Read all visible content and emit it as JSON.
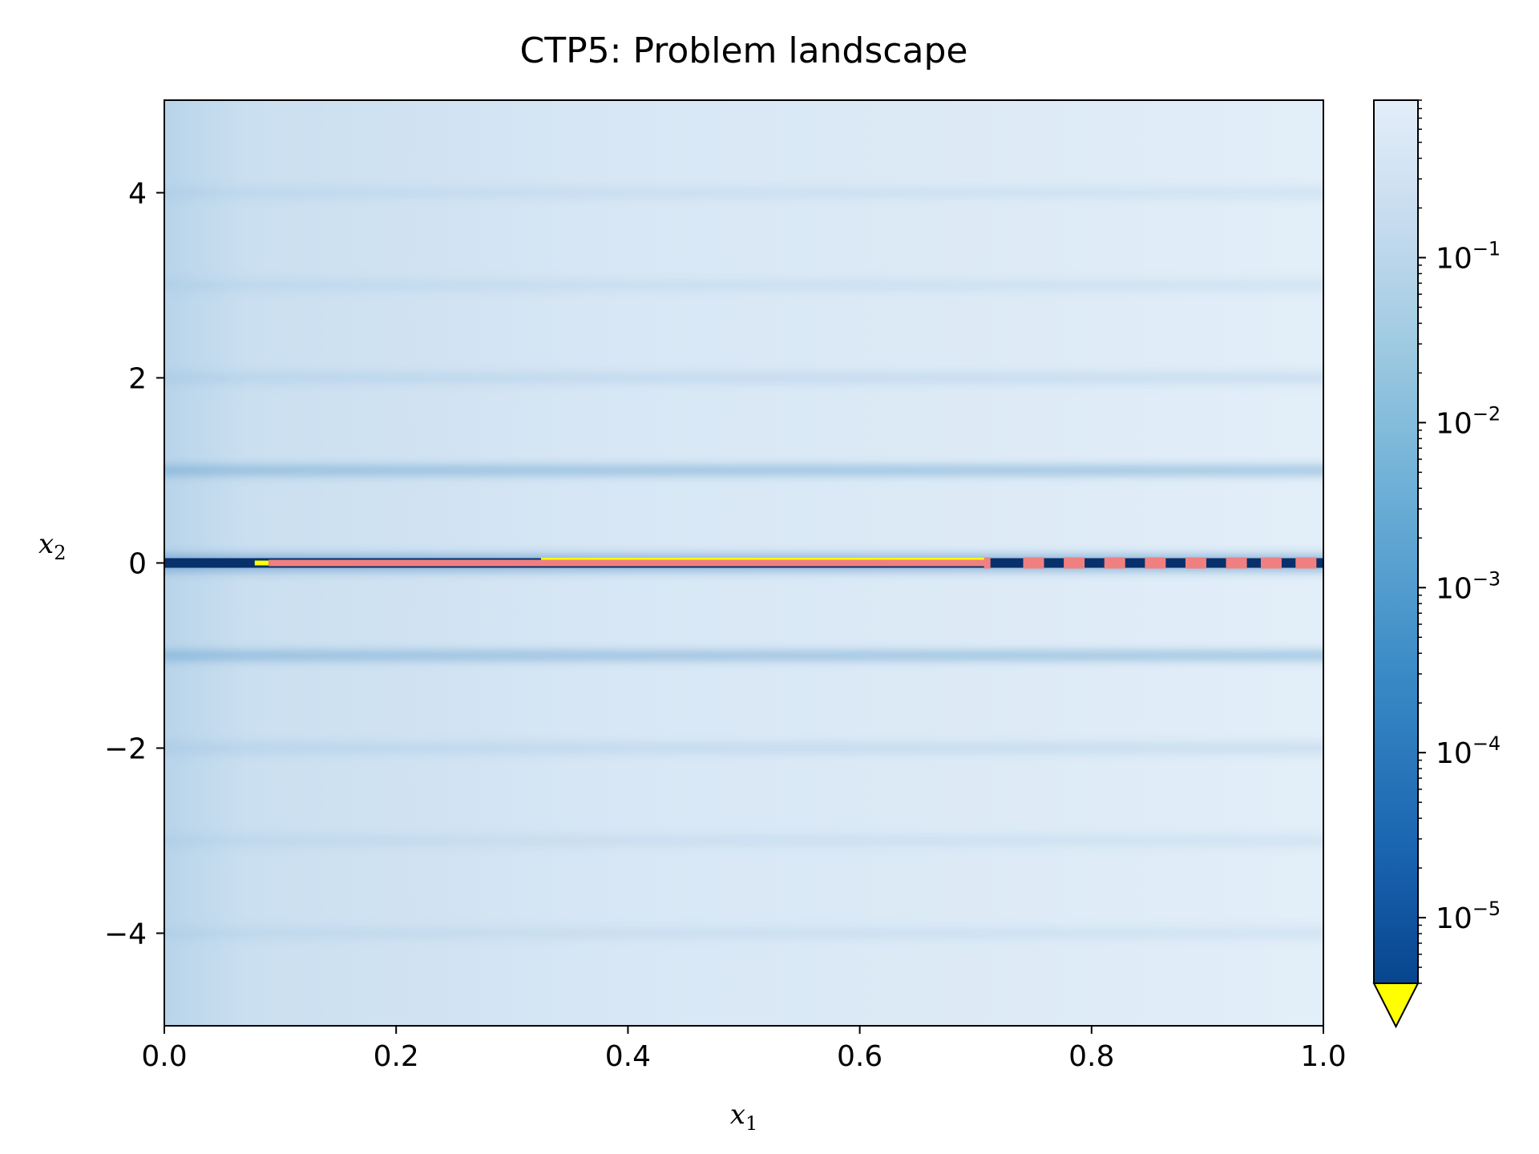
{
  "chart_data": {
    "type": "heatmap",
    "title": "CTP5: Problem landscape",
    "xlabel": {
      "base": "x",
      "sub": "1"
    },
    "ylabel": {
      "base": "x",
      "sub": "2"
    },
    "xlim": [
      0.0,
      1.0
    ],
    "ylim": [
      -5,
      5
    ],
    "x_ticks": [
      {
        "value": 0.0,
        "label": "0.0"
      },
      {
        "value": 0.2,
        "label": "0.2"
      },
      {
        "value": 0.4,
        "label": "0.4"
      },
      {
        "value": 0.6,
        "label": "0.6"
      },
      {
        "value": 0.8,
        "label": "0.8"
      },
      {
        "value": 1.0,
        "label": "1.0"
      }
    ],
    "y_ticks": [
      {
        "value": 4,
        "label": "4"
      },
      {
        "value": 2,
        "label": "2"
      },
      {
        "value": 0,
        "label": "0"
      },
      {
        "value": -2,
        "label": "−2"
      },
      {
        "value": -4,
        "label": "−4"
      }
    ],
    "colormap": "Blues_r",
    "color_scale": "log",
    "colorbar": {
      "range": [
        4e-06,
        0.9
      ],
      "extend": "min",
      "under_color": "#ffff00",
      "ticks": [
        {
          "value": 0.1,
          "base": "10",
          "exp": "−1"
        },
        {
          "value": 0.01,
          "base": "10",
          "exp": "−2"
        },
        {
          "value": 0.001,
          "base": "10",
          "exp": "−3"
        },
        {
          "value": 0.0001,
          "base": "10",
          "exp": "−4"
        },
        {
          "value": 1e-05,
          "base": "10",
          "exp": "−5"
        }
      ]
    },
    "low_value_bands_x2": [
      -4,
      -3,
      -2,
      -1,
      0,
      1,
      2,
      3,
      4
    ],
    "minimum_line": {
      "x2": 0,
      "x1_range": [
        0.0,
        1.0
      ],
      "color": "#08306b"
    },
    "feasible_min_overlay": {
      "x2": 0,
      "x1_range": [
        0.325,
        0.71
      ],
      "color": "#ffff00"
    },
    "pareto_front": {
      "x2": 0,
      "color": "#f08080",
      "solid_segments": [
        [
          0.09,
          0.71
        ]
      ],
      "dashes_x1": [
        0.71,
        0.75,
        0.785,
        0.82,
        0.855,
        0.89,
        0.925,
        0.955,
        0.985
      ]
    },
    "colors": {
      "low": "#08306b",
      "high": "#dfebf7",
      "pareto": "#f08080",
      "feasible": "#ffff00"
    }
  }
}
